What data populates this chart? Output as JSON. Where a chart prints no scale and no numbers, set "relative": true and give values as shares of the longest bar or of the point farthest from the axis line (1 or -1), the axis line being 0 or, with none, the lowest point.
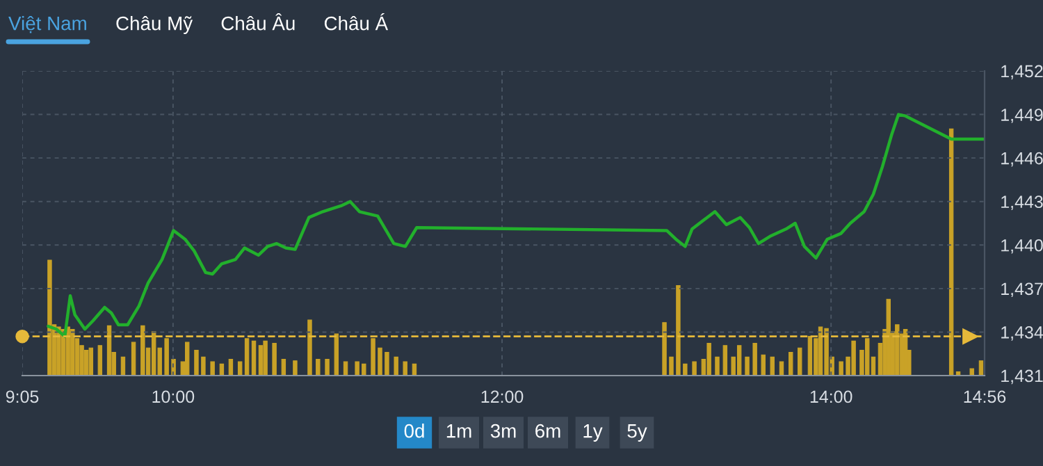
{
  "chart_data": [
    {
      "type": "line",
      "annotations": [
        "Việt Nam",
        "Châu Mỹ",
        "Châu Âu",
        "Châu Á",
        "0d",
        "1m",
        "3m",
        "6m",
        "1y",
        "5y"
      ],
      "series": [
        {
          "color": "#22b02c",
          "x": [
            9.241,
            9.291,
            9.342,
            9.375,
            9.403,
            9.464,
            9.515,
            9.584,
            9.626,
            9.668,
            9.724,
            9.793,
            9.849,
            9.933,
            10.003,
            10.073,
            10.128,
            10.198,
            10.24,
            10.295,
            10.379,
            10.435,
            10.519,
            10.575,
            10.63,
            10.686,
            10.742,
            10.826,
            10.91,
            10.965,
            11.021,
            11.077,
            11.133,
            11.244,
            11.342,
            11.412,
            11.481,
            13.001,
            13.057,
            13.113,
            13.155,
            13.224,
            13.294,
            13.364,
            13.448,
            13.504,
            13.559,
            13.629,
            13.726,
            13.782,
            13.838,
            13.908,
            13.977,
            14.061,
            14.117,
            14.201,
            14.257,
            14.312,
            14.368,
            14.41,
            14.452,
            14.731,
            14.926
          ],
          "values": [
            1434.4,
            1434.2,
            1433.7,
            1436.5,
            1435.2,
            1434.2,
            1434.8,
            1435.7,
            1435.3,
            1434.5,
            1434.5,
            1435.8,
            1437.4,
            1439.0,
            1441.0,
            1440.4,
            1439.6,
            1438.1,
            1438.0,
            1438.7,
            1439.0,
            1439.8,
            1439.3,
            1439.9,
            1440.1,
            1439.8,
            1439.7,
            1441.9,
            1442.3,
            1442.5,
            1442.7,
            1443.0,
            1442.3,
            1442.0,
            1440.1,
            1439.9,
            1441.2,
            1441.0,
            1440.4,
            1439.9,
            1441.1,
            1441.7,
            1442.3,
            1441.4,
            1441.9,
            1441.2,
            1440.1,
            1440.6,
            1441.1,
            1441.5,
            1439.9,
            1439.1,
            1440.4,
            1440.8,
            1441.5,
            1442.3,
            1443.5,
            1445.4,
            1447.6,
            1449.0,
            1448.9,
            1447.3,
            1447.3
          ]
        }
      ],
      "ref_lines": [
        {
          "axis": "y",
          "value": 1433.7,
          "color": "#e6b93a",
          "line_style": "dashed"
        }
      ],
      "xlim": [
        9.0833,
        14.9333
      ],
      "xticks": [
        {
          "value": 9.0833,
          "label": "9:05"
        },
        {
          "value": 10,
          "label": "10:00"
        },
        {
          "value": 12,
          "label": "12:00"
        },
        {
          "value": 14,
          "label": "14:00"
        },
        {
          "value": 14.9333,
          "label": "14:56"
        }
      ],
      "ylim": [
        1431,
        1452
      ],
      "yticks": [
        {
          "value": 1431,
          "label": "1,431"
        },
        {
          "value": 1434,
          "label": "1,434"
        },
        {
          "value": 1437,
          "label": "1,437"
        },
        {
          "value": 1440,
          "label": "1,440"
        },
        {
          "value": 1443,
          "label": "1,443"
        },
        {
          "value": 1446,
          "label": "1,446"
        },
        {
          "value": 1449,
          "label": "1,449"
        },
        {
          "value": 1452,
          "label": "1,452"
        }
      ],
      "grid": true,
      "marker": "none",
      "line_style": "solid"
    },
    {
      "type": "bar",
      "relative": true,
      "color": "#c9a227",
      "xlim": [
        9.0833,
        14.9333
      ],
      "x": [
        9.25,
        9.278,
        9.305,
        9.333,
        9.361,
        9.389,
        9.417,
        9.445,
        9.473,
        9.501,
        9.556,
        9.612,
        9.64,
        9.696,
        9.76,
        9.816,
        9.849,
        9.883,
        9.919,
        9.961,
        10.003,
        10.059,
        10.086,
        10.142,
        10.184,
        10.24,
        10.296,
        10.351,
        10.407,
        10.449,
        10.491,
        10.533,
        10.561,
        10.616,
        10.672,
        10.742,
        10.831,
        10.881,
        10.937,
        10.993,
        11.049,
        11.119,
        11.16,
        11.216,
        11.258,
        11.3,
        11.356,
        11.411,
        11.467,
        12.987,
        13.029,
        13.071,
        13.113,
        13.169,
        13.225,
        13.258,
        13.308,
        13.356,
        13.406,
        13.442,
        13.49,
        13.537,
        13.588,
        13.643,
        13.699,
        13.755,
        13.81,
        13.872,
        13.908,
        13.936,
        13.972,
        14.006,
        14.061,
        14.103,
        14.137,
        14.187,
        14.22,
        14.257,
        14.299,
        14.327,
        14.349,
        14.374,
        14.402,
        14.43,
        14.452,
        14.474,
        14.731,
        14.773,
        14.856,
        14.912
      ],
      "values": [
        0.468,
        0.206,
        0.197,
        0.187,
        0.197,
        0.187,
        0.15,
        0.122,
        0.103,
        0.112,
        0.122,
        0.202,
        0.094,
        0.075,
        0.135,
        0.202,
        0.112,
        0.178,
        0.112,
        0.15,
        0.066,
        0.056,
        0.135,
        0.103,
        0.075,
        0.056,
        0.047,
        0.066,
        0.056,
        0.15,
        0.14,
        0.122,
        0.14,
        0.131,
        0.066,
        0.06,
        0.225,
        0.066,
        0.066,
        0.169,
        0.056,
        0.056,
        0.047,
        0.15,
        0.112,
        0.094,
        0.075,
        0.056,
        0.047,
        0.215,
        0.075,
        0.365,
        0.047,
        0.056,
        0.066,
        0.131,
        0.075,
        0.122,
        0.075,
        0.122,
        0.075,
        0.131,
        0.084,
        0.075,
        0.056,
        0.094,
        0.112,
        0.159,
        0.15,
        0.197,
        0.191,
        0.075,
        0.056,
        0.075,
        0.14,
        0.103,
        0.15,
        0.075,
        0.131,
        0.187,
        0.309,
        0.178,
        0.206,
        0.169,
        0.187,
        0.103,
        1.0,
        0.015,
        0.028,
        0.06
      ]
    }
  ]
}
